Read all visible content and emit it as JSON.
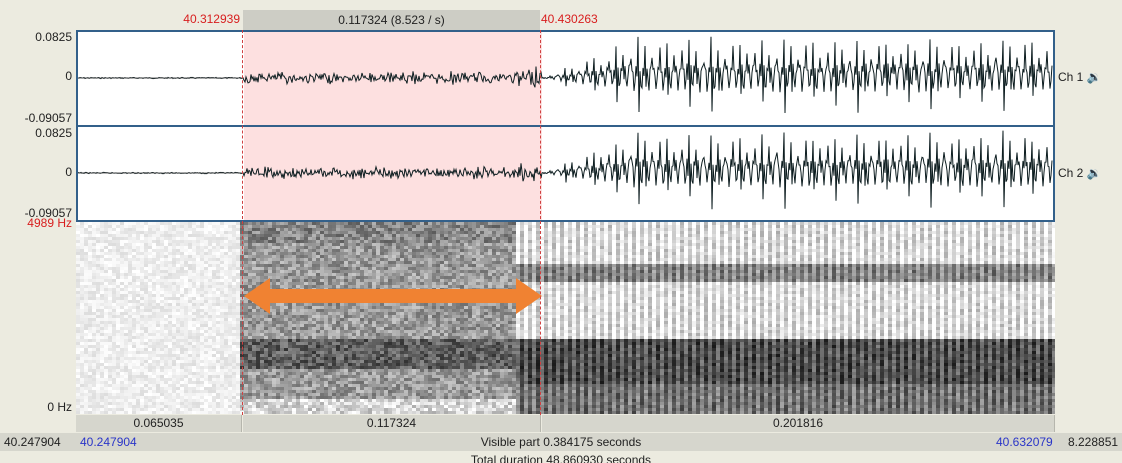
{
  "selection": {
    "start": "40.312939",
    "length": "0.117324 (8.523 / s)",
    "end": "40.430263"
  },
  "channels": [
    {
      "label": "Ch 1",
      "ymax": "0.0825",
      "yzero": "0",
      "ymin": "-0.09057",
      "speaker_icon": "speaker-icon"
    },
    {
      "label": "Ch 2",
      "ymax": "0.0825",
      "yzero": "0",
      "ymin": "-0.09057",
      "speaker_icon": "speaker-icon"
    }
  ],
  "spectrogram": {
    "fmax": "4989 Hz",
    "fmin": "0 Hz",
    "annotation": "double-headed-arrow",
    "arrow_color": "#f08232"
  },
  "durations": [
    "0.065035",
    "0.117324",
    "0.201816"
  ],
  "visible": {
    "left_outer": "40.247904",
    "left_inner": "40.247904",
    "label": "Visible part 0.384175 seconds",
    "right_inner": "40.632079",
    "right_outer": "8.228851"
  },
  "total": "Total duration 48.860930 seconds",
  "colors": {
    "selection_bg": "#fde0e0",
    "panel_border": "#33608a",
    "time_red": "#d81e1e",
    "time_blue": "#2a35c8"
  }
}
